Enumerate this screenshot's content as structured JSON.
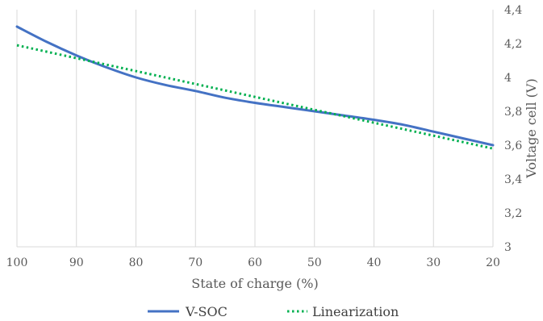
{
  "chart_data": {
    "type": "line",
    "xlabel": "State of charge (%)",
    "ylabel": "Voltage cell (V)",
    "x_reversed": true,
    "y_axis_position": "right",
    "xlim": [
      100,
      20
    ],
    "ylim": [
      3,
      4.4
    ],
    "x_ticks": [
      "100",
      "90",
      "80",
      "70",
      "60",
      "50",
      "40",
      "30",
      "20"
    ],
    "y_ticks": [
      "3",
      "3,2",
      "3,4",
      "3,6",
      "3,8",
      "4",
      "4,2",
      "4,4"
    ],
    "grid": {
      "vertical": true,
      "horizontal": false
    },
    "legend_position": "bottom",
    "series": [
      {
        "name": "V-SOC",
        "style": "solid",
        "color": "#4472C4",
        "x": [
          100,
          95,
          90,
          85,
          80,
          75,
          70,
          65,
          60,
          55,
          50,
          45,
          40,
          35,
          30,
          25,
          20
        ],
        "y": [
          4.3,
          4.21,
          4.13,
          4.06,
          4.0,
          3.955,
          3.92,
          3.88,
          3.85,
          3.825,
          3.8,
          3.775,
          3.75,
          3.72,
          3.68,
          3.64,
          3.6
        ]
      },
      {
        "name": "Linearization",
        "style": "dotted",
        "color": "#00B050",
        "x": [
          100,
          20
        ],
        "y": [
          4.19,
          3.58
        ]
      }
    ]
  }
}
